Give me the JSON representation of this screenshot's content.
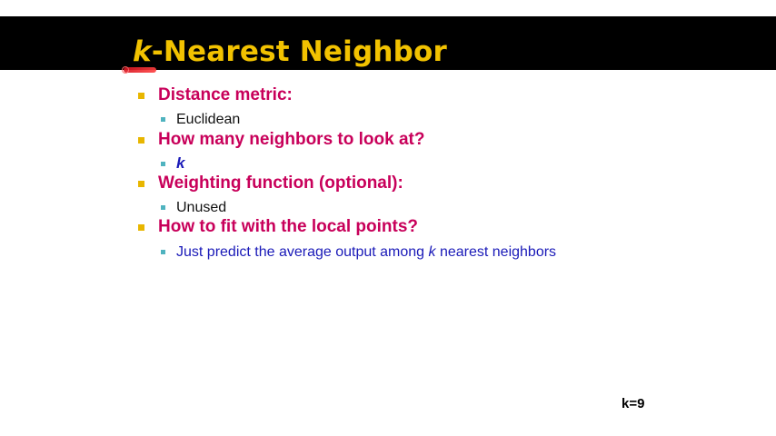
{
  "slide": {
    "title_k": "k",
    "title_rest": "-Nearest Neighbor",
    "items": [
      {
        "label": "Distance metric:",
        "sub": "Euclidean"
      },
      {
        "label": "How many neighbors to look at?",
        "sub": "k"
      },
      {
        "label": "Weighting function (optional):",
        "sub": "Unused"
      },
      {
        "label": "How to fit with the local points?",
        "sub_pre": "Just predict the average output among ",
        "sub_k": "k",
        "sub_post": " nearest neighbors"
      }
    ],
    "k_value": "k=9"
  },
  "colors": {
    "title": "#f2c200",
    "level1_text": "#c8005a",
    "level1_bullet": "#e8b600",
    "level2_bullet": "#4fb3bf",
    "blue_text": "#1a1ab8",
    "title_bar": "#000000"
  }
}
